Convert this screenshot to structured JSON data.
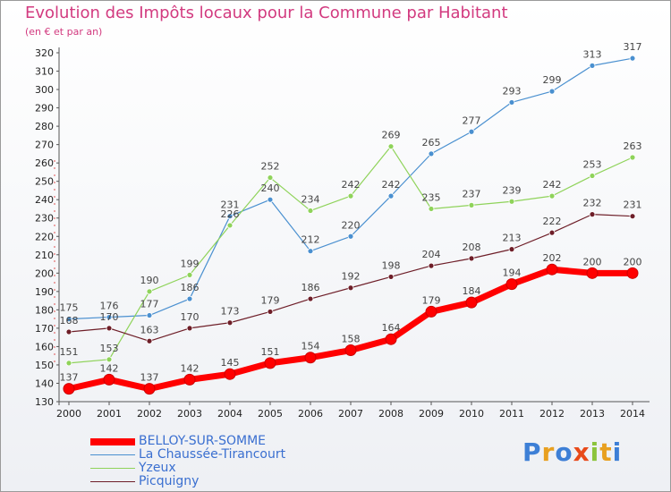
{
  "chart_data": {
    "type": "line",
    "title": "Evolution des Impôts locaux pour la Commune par Habitant",
    "subtitle": "(en € et par an)",
    "xlabel": "",
    "ylabel": "",
    "x": [
      "2000",
      "2001",
      "2002",
      "2003",
      "2004",
      "2005",
      "2006",
      "2007",
      "2008",
      "2009",
      "2010",
      "2011",
      "2012",
      "2013",
      "2014"
    ],
    "ylim": [
      130,
      320
    ],
    "yticks": [
      130,
      140,
      150,
      160,
      170,
      180,
      190,
      200,
      210,
      220,
      230,
      240,
      250,
      260,
      270,
      280,
      290,
      300,
      310,
      320
    ],
    "grid": false,
    "legend_position": "bottom-left",
    "series": [
      {
        "name": "BELLOY-SUR-SOMME",
        "color": "#ff0000",
        "values": [
          137,
          142,
          137,
          142,
          145,
          151,
          154,
          158,
          164,
          179,
          184,
          194,
          202,
          200,
          200
        ]
      },
      {
        "name": "La Chaussée-Tirancourt",
        "color": "#4a90d0",
        "values": [
          175,
          176,
          177,
          186,
          231,
          240,
          212,
          220,
          242,
          265,
          277,
          293,
          299,
          313,
          317
        ]
      },
      {
        "name": "Yzeux",
        "color": "#8fd35a",
        "values": [
          151,
          153,
          190,
          199,
          226,
          252,
          234,
          242,
          269,
          235,
          237,
          239,
          242,
          253,
          263
        ]
      },
      {
        "name": "Picquigny",
        "color": "#6e1e28",
        "values": [
          168,
          170,
          163,
          170,
          173,
          179,
          186,
          192,
          198,
          204,
          208,
          213,
          222,
          232,
          231
        ]
      }
    ]
  },
  "brand": {
    "letters": [
      {
        "ch": "P",
        "color": "#3d7fd6"
      },
      {
        "ch": "r",
        "color": "#e8a020"
      },
      {
        "ch": "o",
        "color": "#3d7fd6"
      },
      {
        "ch": "x",
        "color": "#e84a1a"
      },
      {
        "ch": "i",
        "color": "#8cc43c"
      },
      {
        "ch": "t",
        "color": "#e8a020"
      },
      {
        "ch": "i",
        "color": "#3d7fd6"
      }
    ]
  }
}
